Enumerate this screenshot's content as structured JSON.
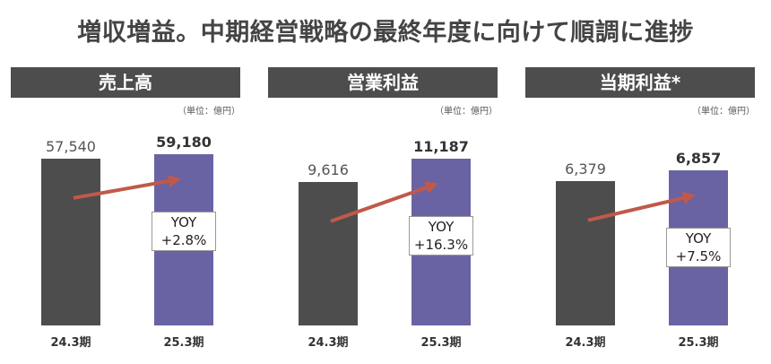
{
  "title": "増収増益。中期経営戦略の最終年度に向けて順調に進捗",
  "unit_label": "（単位：億円）",
  "colors": {
    "prev_bar": "#4d4d4d",
    "curr_bar": "#6a63a3",
    "arrow": "#c0594a",
    "header_bg": "#4d4d4d"
  },
  "chart_data": [
    {
      "type": "bar",
      "title": "売上高",
      "categories": [
        "24.3期",
        "25.3期"
      ],
      "values": [
        57540,
        59180
      ],
      "value_labels": [
        "57,540",
        "59,180"
      ],
      "yoy_label": "YOY",
      "yoy_value": "+2.8%",
      "ylim": [
        0,
        68000
      ]
    },
    {
      "type": "bar",
      "title": "営業利益",
      "categories": [
        "24.3期",
        "25.3期"
      ],
      "values": [
        9616,
        11187
      ],
      "value_labels": [
        "9,616",
        "11,187"
      ],
      "yoy_label": "YOY",
      "yoy_value": "+16.3%",
      "ylim": [
        0,
        13200
      ]
    },
    {
      "type": "bar",
      "title": "当期利益*",
      "categories": [
        "24.3期",
        "25.3期"
      ],
      "values": [
        6379,
        6857
      ],
      "value_labels": [
        "6,379",
        "6,857"
      ],
      "yoy_label": "YOY",
      "yoy_value": "+7.5%",
      "ylim": [
        0,
        8700
      ]
    }
  ]
}
